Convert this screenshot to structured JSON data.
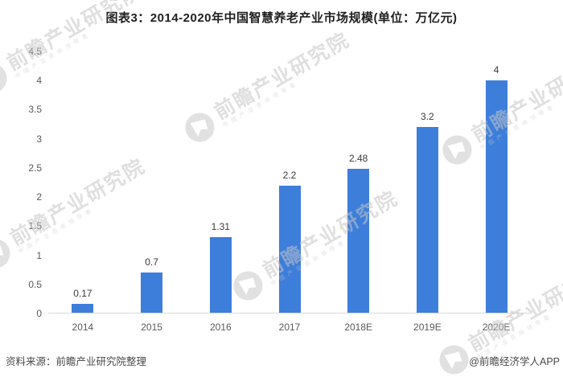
{
  "title": "图表3：2014-2020年中国智慧养老产业市场规模(单位：万亿元)",
  "chart_data": {
    "type": "bar",
    "title": "图表3：2014-2020年中国智慧养老产业市场规模",
    "unit": "万亿元",
    "categories": [
      "2014",
      "2015",
      "2016",
      "2017",
      "2018E",
      "2019E",
      "2020E"
    ],
    "values": [
      0.17,
      0.7,
      1.31,
      2.2,
      2.48,
      3.2,
      4
    ],
    "data_labels": [
      "0.17",
      "0.7",
      "1.31",
      "2.2",
      "2.48",
      "3.2",
      "4"
    ],
    "ylim": [
      0,
      4.5
    ],
    "ytick_step": 0.5,
    "ytick_labels": [
      "0",
      "0.5",
      "1",
      "1.5",
      "2",
      "2.5",
      "3",
      "3.5",
      "4",
      "4.5"
    ],
    "grid": false,
    "legend": "none",
    "bar_color": "#3d7edb",
    "axis_line_color": "#d9d9d9"
  },
  "footer": {
    "source": "资料来源：前瞻产业研究院整理",
    "credit": "@前瞻经济学人APP"
  },
  "watermark": {
    "text": "前瞻产业研究院",
    "subtext": "中国产业咨询领导者"
  }
}
